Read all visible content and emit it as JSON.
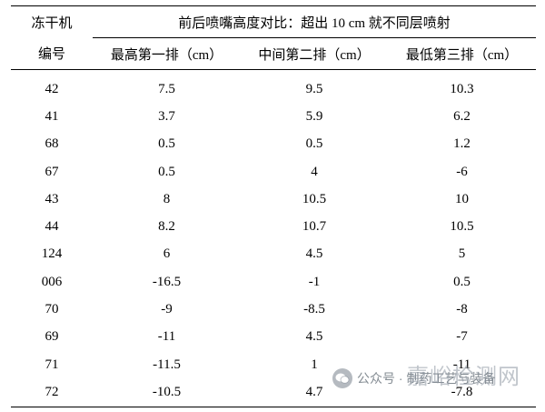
{
  "table": {
    "header": {
      "machine_line1": "冻干机",
      "machine_line2": "编号",
      "group_title": "前后喷嘴高度对比：超出 10 cm 就不同层喷射",
      "col_top": "最高第一排（cm）",
      "col_middle": "中间第二排（cm）",
      "col_bottom": "最低第三排（cm）"
    },
    "rows": [
      {
        "id": "42",
        "top": "7.5",
        "middle": "9.5",
        "bottom": "10.3"
      },
      {
        "id": "41",
        "top": "3.7",
        "middle": "5.9",
        "bottom": "6.2"
      },
      {
        "id": "68",
        "top": "0.5",
        "middle": "0.5",
        "bottom": "1.2"
      },
      {
        "id": "67",
        "top": "0.5",
        "middle": "4",
        "bottom": "-6"
      },
      {
        "id": "43",
        "top": "8",
        "middle": "10.5",
        "bottom": "10"
      },
      {
        "id": "44",
        "top": "8.2",
        "middle": "10.7",
        "bottom": "10.5"
      },
      {
        "id": "124",
        "top": "6",
        "middle": "4.5",
        "bottom": "5"
      },
      {
        "id": "006",
        "top": "-16.5",
        "middle": "-1",
        "bottom": "0.5"
      },
      {
        "id": "70",
        "top": "-9",
        "middle": "-8.5",
        "bottom": "-8"
      },
      {
        "id": "69",
        "top": "-11",
        "middle": "4.5",
        "bottom": "-7"
      },
      {
        "id": "71",
        "top": "-11.5",
        "middle": "1",
        "bottom": "-11"
      },
      {
        "id": "72",
        "top": "-10.5",
        "middle": "4.7",
        "bottom": "-7.8"
      }
    ]
  },
  "watermark": {
    "account_text": "公众号 · 制药工艺与装备",
    "brand_text": "嘉峪检测网",
    "logo_icon": "wechat-icon"
  }
}
